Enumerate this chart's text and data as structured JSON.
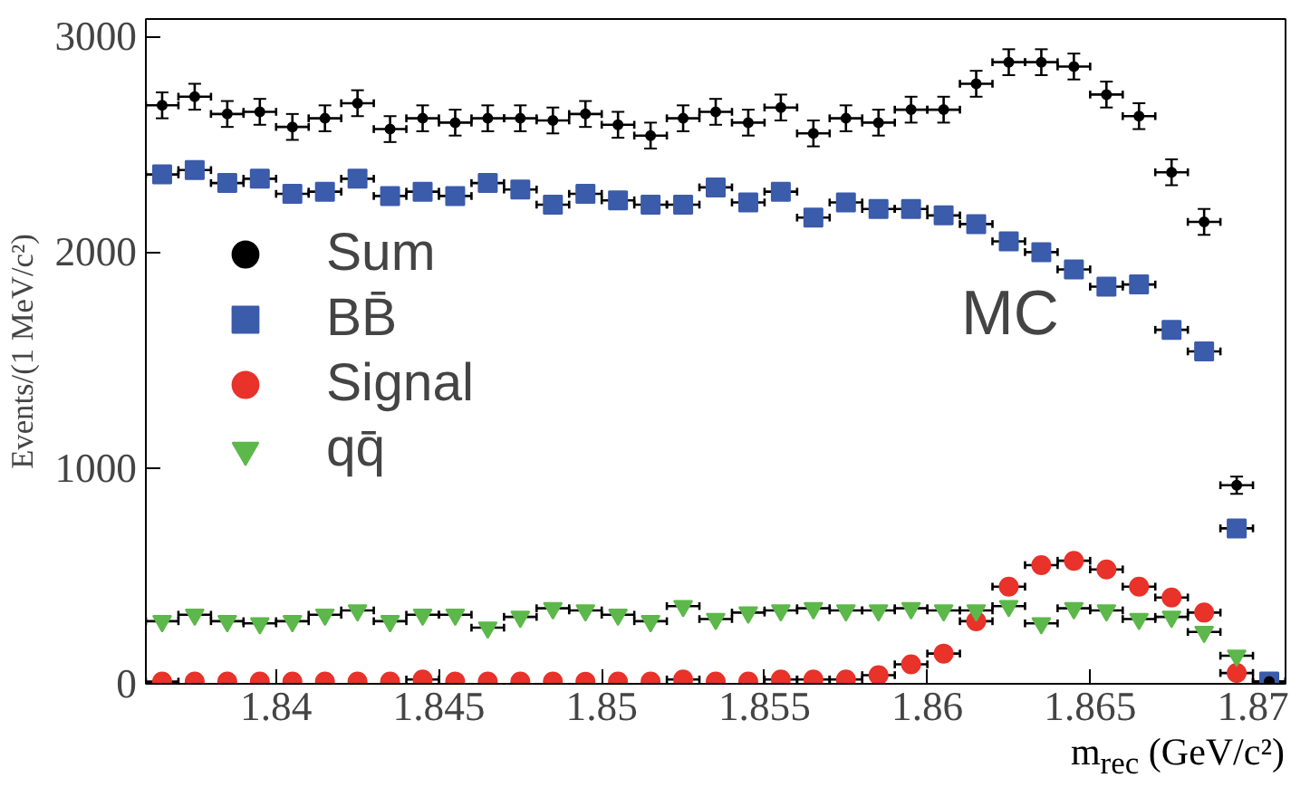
{
  "chart_data": {
    "type": "scatter",
    "xlabel": "m$_{rec}$ (GeV/c²)",
    "ylabel": "Events/(1 MeV/c²)",
    "x": [
      1.8365,
      1.8375,
      1.8385,
      1.8395,
      1.8405,
      1.8415,
      1.8425,
      1.8435,
      1.8445,
      1.8455,
      1.8465,
      1.8475,
      1.8485,
      1.8495,
      1.8505,
      1.8515,
      1.8525,
      1.8535,
      1.8545,
      1.8555,
      1.8565,
      1.8575,
      1.8585,
      1.8595,
      1.8605,
      1.8615,
      1.8625,
      1.8635,
      1.8645,
      1.8655,
      1.8665,
      1.8675,
      1.8685,
      1.8695,
      1.8705
    ],
    "xlim": [
      1.836,
      1.871
    ],
    "xticks": [
      1.84,
      1.845,
      1.85,
      1.855,
      1.86,
      1.865,
      1.87
    ],
    "ylim": [
      0,
      3080
    ],
    "yticks": [
      0,
      1000,
      2000,
      3000
    ],
    "grid": false,
    "legend": "left",
    "annotations": [
      "MC"
    ],
    "series": [
      {
        "name": "Sum",
        "color": "#000000",
        "marker": "circle",
        "values": [
          2680,
          2720,
          2640,
          2650,
          2580,
          2620,
          2690,
          2570,
          2620,
          2600,
          2620,
          2620,
          2610,
          2640,
          2590,
          2540,
          2620,
          2650,
          2600,
          2670,
          2550,
          2620,
          2600,
          2660,
          2660,
          2780,
          2880,
          2880,
          2860,
          2730,
          2630,
          2370,
          2140,
          920,
          10
        ],
        "errors": [
          60,
          60,
          60,
          60,
          60,
          60,
          60,
          60,
          60,
          60,
          60,
          60,
          60,
          60,
          60,
          60,
          60,
          60,
          60,
          60,
          60,
          60,
          60,
          60,
          60,
          60,
          60,
          60,
          60,
          60,
          60,
          60,
          60,
          40,
          10
        ],
        "xerrors": [
          0.0005,
          0.0005,
          0.0005,
          0.0005,
          0.0005,
          0.0005,
          0.0005,
          0.0005,
          0.0005,
          0.0005,
          0.0005,
          0.0005,
          0.0005,
          0.0005,
          0.0005,
          0.0005,
          0.0005,
          0.0005,
          0.0005,
          0.0005,
          0.0005,
          0.0005,
          0.0005,
          0.0005,
          0.0005,
          0.0005,
          0.0005,
          0.0005,
          0.0005,
          0.0005,
          0.0005,
          0.0005,
          0.0005,
          0.0005,
          0.0005
        ]
      },
      {
        "name": "BB̄",
        "color": "#3b5bab",
        "marker": "square",
        "values": [
          2360,
          2380,
          2320,
          2340,
          2270,
          2280,
          2340,
          2260,
          2280,
          2260,
          2320,
          2290,
          2220,
          2270,
          2240,
          2220,
          2220,
          2300,
          2230,
          2280,
          2160,
          2230,
          2200,
          2200,
          2170,
          2130,
          2050,
          2000,
          1920,
          1840,
          1850,
          1640,
          1540,
          720,
          10
        ],
        "xerrors": [
          0.0005,
          0.0005,
          0.0005,
          0.0005,
          0.0005,
          0.0005,
          0.0005,
          0.0005,
          0.0005,
          0.0005,
          0.0005,
          0.0005,
          0.0005,
          0.0005,
          0.0005,
          0.0005,
          0.0005,
          0.0005,
          0.0005,
          0.0005,
          0.0005,
          0.0005,
          0.0005,
          0.0005,
          0.0005,
          0.0005,
          0.0005,
          0.0005,
          0.0005,
          0.0005,
          0.0005,
          0.0005,
          0.0005,
          0.0005,
          0.0005
        ]
      },
      {
        "name": "Signal",
        "color": "#e8322a",
        "marker": "circle",
        "values": [
          10,
          10,
          10,
          10,
          10,
          10,
          10,
          10,
          20,
          10,
          10,
          10,
          10,
          10,
          10,
          10,
          20,
          10,
          10,
          20,
          20,
          20,
          40,
          90,
          140,
          290,
          450,
          550,
          570,
          530,
          450,
          400,
          330,
          50,
          null
        ],
        "xerrors": [
          0.0005,
          null,
          null,
          null,
          null,
          null,
          null,
          null,
          0.0005,
          null,
          null,
          null,
          null,
          null,
          null,
          null,
          0.0005,
          null,
          null,
          0.0005,
          0.0005,
          0.0005,
          0.0005,
          0.0005,
          0.0005,
          0.0005,
          0.0005,
          0.0005,
          0.0005,
          0.0005,
          0.0005,
          0.0005,
          0.0005,
          0.0005,
          null
        ]
      },
      {
        "name": "qq̄",
        "color": "#5cb84a",
        "marker": "triangle",
        "values": [
          290,
          320,
          290,
          280,
          290,
          320,
          340,
          290,
          320,
          320,
          260,
          310,
          350,
          340,
          320,
          290,
          360,
          300,
          330,
          340,
          350,
          340,
          340,
          350,
          340,
          340,
          360,
          280,
          350,
          340,
          300,
          310,
          240,
          130,
          null
        ],
        "xerrors": [
          0.0005,
          0.0005,
          0.0005,
          0.0005,
          0.0005,
          0.0005,
          0.0005,
          0.0005,
          0.0005,
          0.0005,
          0.0005,
          0.0005,
          0.0005,
          0.0005,
          0.0005,
          0.0005,
          0.0005,
          0.0005,
          0.0005,
          0.0005,
          0.0005,
          0.0005,
          0.0005,
          0.0005,
          0.0005,
          0.0005,
          0.0005,
          0.0005,
          0.0005,
          0.0005,
          0.0005,
          0.0005,
          0.0005,
          0.0005,
          null
        ]
      }
    ]
  }
}
